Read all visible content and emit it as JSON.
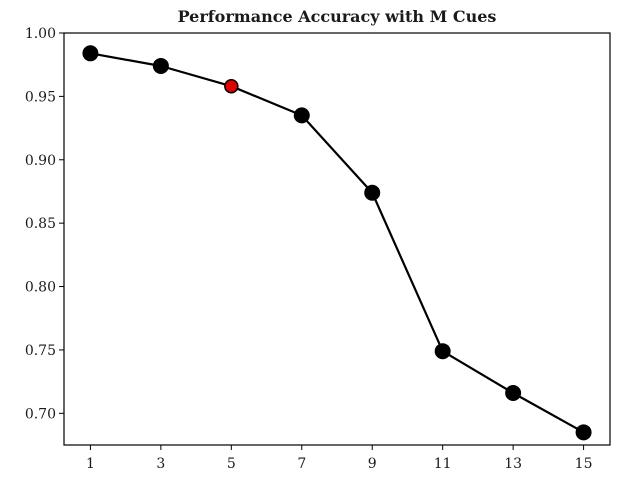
{
  "chart_data": {
    "type": "line",
    "title": "Performance Accuracy with M Cues",
    "xlabel": "",
    "ylabel": "",
    "x": [
      1,
      3,
      5,
      7,
      9,
      11,
      13,
      15
    ],
    "series": [
      {
        "values": [
          0.984,
          0.974,
          0.958,
          0.935,
          0.874,
          0.749,
          0.716,
          0.685
        ]
      }
    ],
    "highlight_index": 2,
    "xticks": [
      "1",
      "3",
      "5",
      "7",
      "9",
      "11",
      "13",
      "15"
    ],
    "yticks": [
      "1.00",
      "0.95",
      "0.90",
      "0.85",
      "0.80",
      "0.75",
      "0.70"
    ],
    "ylim": [
      0.675,
      1.0
    ],
    "xlim": [
      0.25,
      15.75
    ],
    "grid": false,
    "colors": {
      "line": "#000000",
      "marker": "#000000",
      "highlight": "#e00000"
    }
  }
}
